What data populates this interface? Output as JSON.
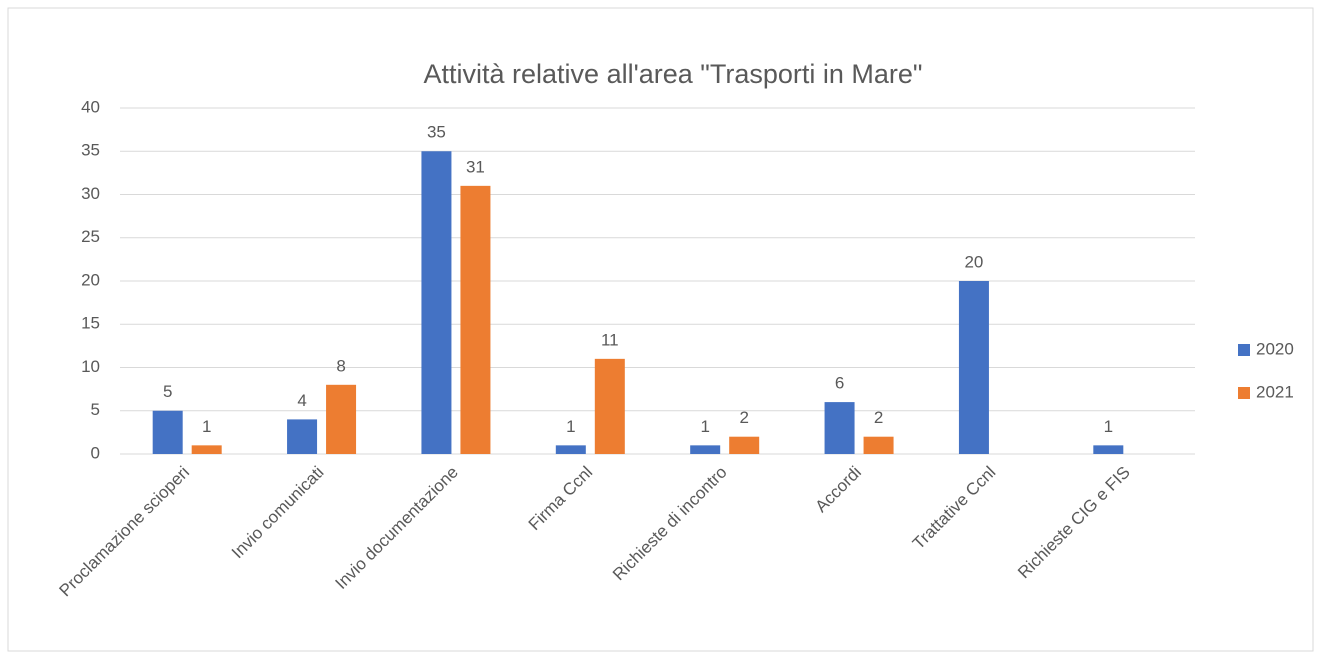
{
  "chart_data": {
    "type": "bar",
    "title": "Attività relative all'area \"Trasporti in Mare\"",
    "categories": [
      "Proclamazione scioperi",
      "Invio comunicati",
      "Invio documentazione",
      "Firma Ccnl",
      "Richieste di incontro",
      "Accordi",
      "Trattative Ccnl",
      "Richieste CIG e FIS"
    ],
    "series": [
      {
        "name": "2020",
        "color": "#4472c4",
        "values": [
          5,
          4,
          35,
          1,
          1,
          6,
          20,
          1
        ]
      },
      {
        "name": "2021",
        "color": "#ed7d31",
        "values": [
          1,
          8,
          31,
          11,
          2,
          2,
          null,
          null
        ]
      }
    ],
    "ylim": [
      0,
      40
    ],
    "yticks": [
      0,
      5,
      10,
      15,
      20,
      25,
      30,
      35,
      40
    ],
    "grid": true,
    "legend": "right"
  }
}
